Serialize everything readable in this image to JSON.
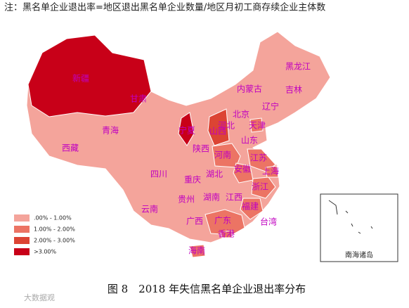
{
  "note": "注：黑名单企业退出率=地区退出黑名单企业数量/地区月初工商存续企业主体数",
  "legend": [
    {
      "label": ".00% - 1.00%",
      "color": "#f4a49b"
    },
    {
      "label": "1.00% - 2.00%",
      "color": "#ec7464"
    },
    {
      "label": "2.00% - 3.00%",
      "color": "#dc4434"
    },
    {
      "label": ">3.00%",
      "color": "#c80018"
    }
  ],
  "provinces": [
    {
      "name": "黑龙江",
      "level": 0
    },
    {
      "name": "内蒙古",
      "level": 0
    },
    {
      "name": "吉林",
      "level": 0
    },
    {
      "name": "辽宁",
      "level": 0
    },
    {
      "name": "甘肃",
      "level": 0
    },
    {
      "name": "北京",
      "level": 0
    },
    {
      "name": "河北",
      "level": 0
    },
    {
      "name": "天津",
      "level": 1
    },
    {
      "name": "新疆",
      "level": 3
    },
    {
      "name": "青海",
      "level": 0
    },
    {
      "name": "宁夏",
      "level": 3
    },
    {
      "name": "山西",
      "level": 2
    },
    {
      "name": "山东",
      "level": 0
    },
    {
      "name": "西藏",
      "level": 0
    },
    {
      "name": "陕西",
      "level": 0
    },
    {
      "name": "河南",
      "level": 1
    },
    {
      "name": "江苏",
      "level": 1
    },
    {
      "name": "安徽",
      "level": 1
    },
    {
      "name": "四川",
      "level": 0
    },
    {
      "name": "湖北",
      "level": 0
    },
    {
      "name": "上海",
      "level": 1
    },
    {
      "name": "重庆",
      "level": 0
    },
    {
      "name": "浙江",
      "level": 1
    },
    {
      "name": "贵州",
      "level": 0
    },
    {
      "name": "湖南",
      "level": 0
    },
    {
      "name": "江西",
      "level": 0
    },
    {
      "name": "福建",
      "level": 1
    },
    {
      "name": "云南",
      "level": 0
    },
    {
      "name": "广西",
      "level": 0
    },
    {
      "name": "广东",
      "level": 1
    },
    {
      "name": "台湾",
      "level": 0
    },
    {
      "name": "香港",
      "level": 1
    },
    {
      "name": "海南",
      "level": 1
    }
  ],
  "inset_label": "南海诸岛",
  "caption": "图 8　2018 年失信黑名单企业退出率分布",
  "watermark": "大数据观"
}
